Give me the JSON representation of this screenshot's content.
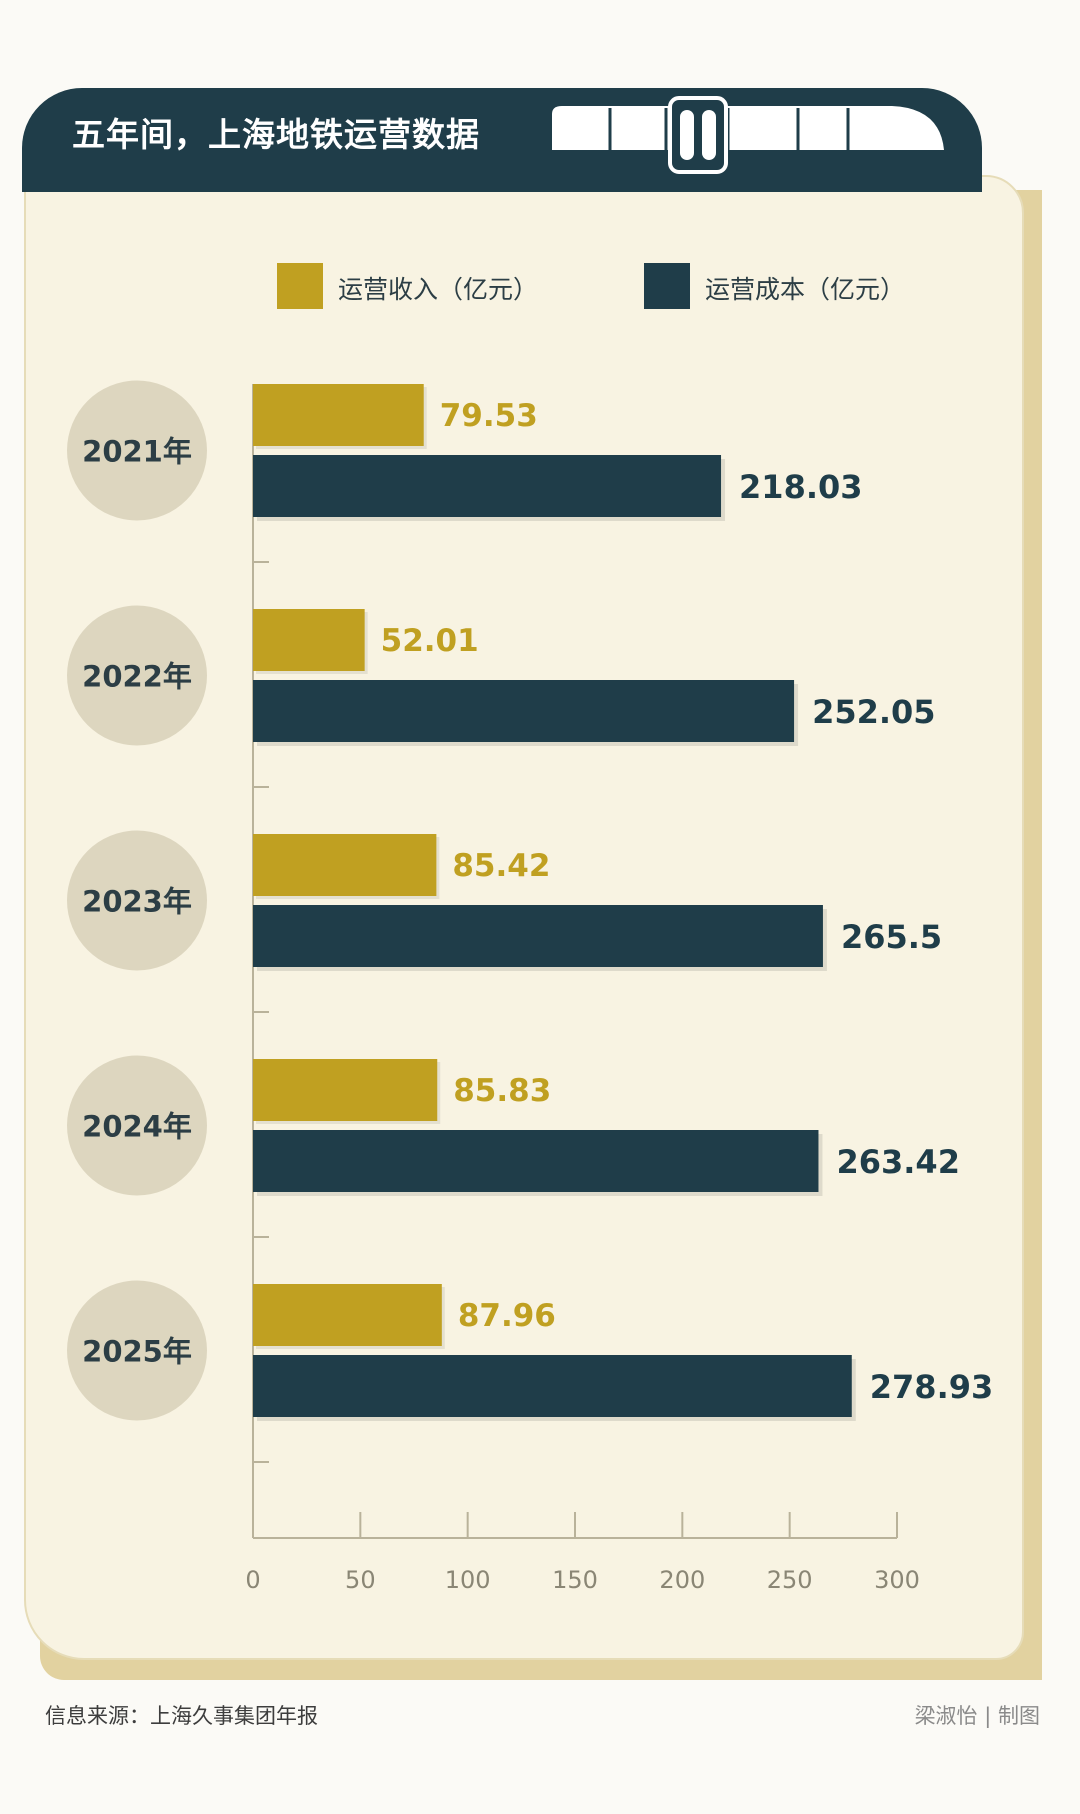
{
  "header": {
    "title": "五年间，上海地铁运营数据"
  },
  "legend": [
    {
      "label": "运营收入（亿元）",
      "color": "#c0a021"
    },
    {
      "label": "运营成本（亿元）",
      "color": "#1f3d49"
    }
  ],
  "chart_data": {
    "type": "bar",
    "orientation": "horizontal",
    "title": "五年间，上海地铁运营数据",
    "categories": [
      "2021年",
      "2022年",
      "2023年",
      "2024年",
      "2025年"
    ],
    "series": [
      {
        "name": "运营收入（亿元）",
        "values": [
          79.53,
          52.01,
          85.42,
          85.83,
          87.96
        ],
        "labels": [
          "79.53",
          "52.01",
          "85.42",
          "85.83",
          "87.96"
        ],
        "color": "#c0a021"
      },
      {
        "name": "运营成本（亿元）",
        "values": [
          218.03,
          252.05,
          265.5,
          263.42,
          278.93
        ],
        "labels": [
          "218.03",
          "252.05",
          "265.5",
          "263.42",
          "278.93"
        ],
        "color": "#1f3d49"
      }
    ],
    "xticks": [
      "0",
      "50",
      "100",
      "150",
      "200",
      "250",
      "300"
    ],
    "xlim": [
      0,
      300
    ],
    "grid": false,
    "legend_position": "top"
  },
  "footer": {
    "source": "信息来源：上海久事集团年报",
    "credit": "梁淑怡 | 制图"
  },
  "colors": {
    "header_bg": "#1f3d49",
    "card_bg": "#f8f3e2",
    "card_shadow": "#e2d2a0",
    "year_circle": "#ddd6bf",
    "axis": "#b9b29a",
    "tick_label": "#8a8675",
    "year_text": "#2c3e45"
  }
}
